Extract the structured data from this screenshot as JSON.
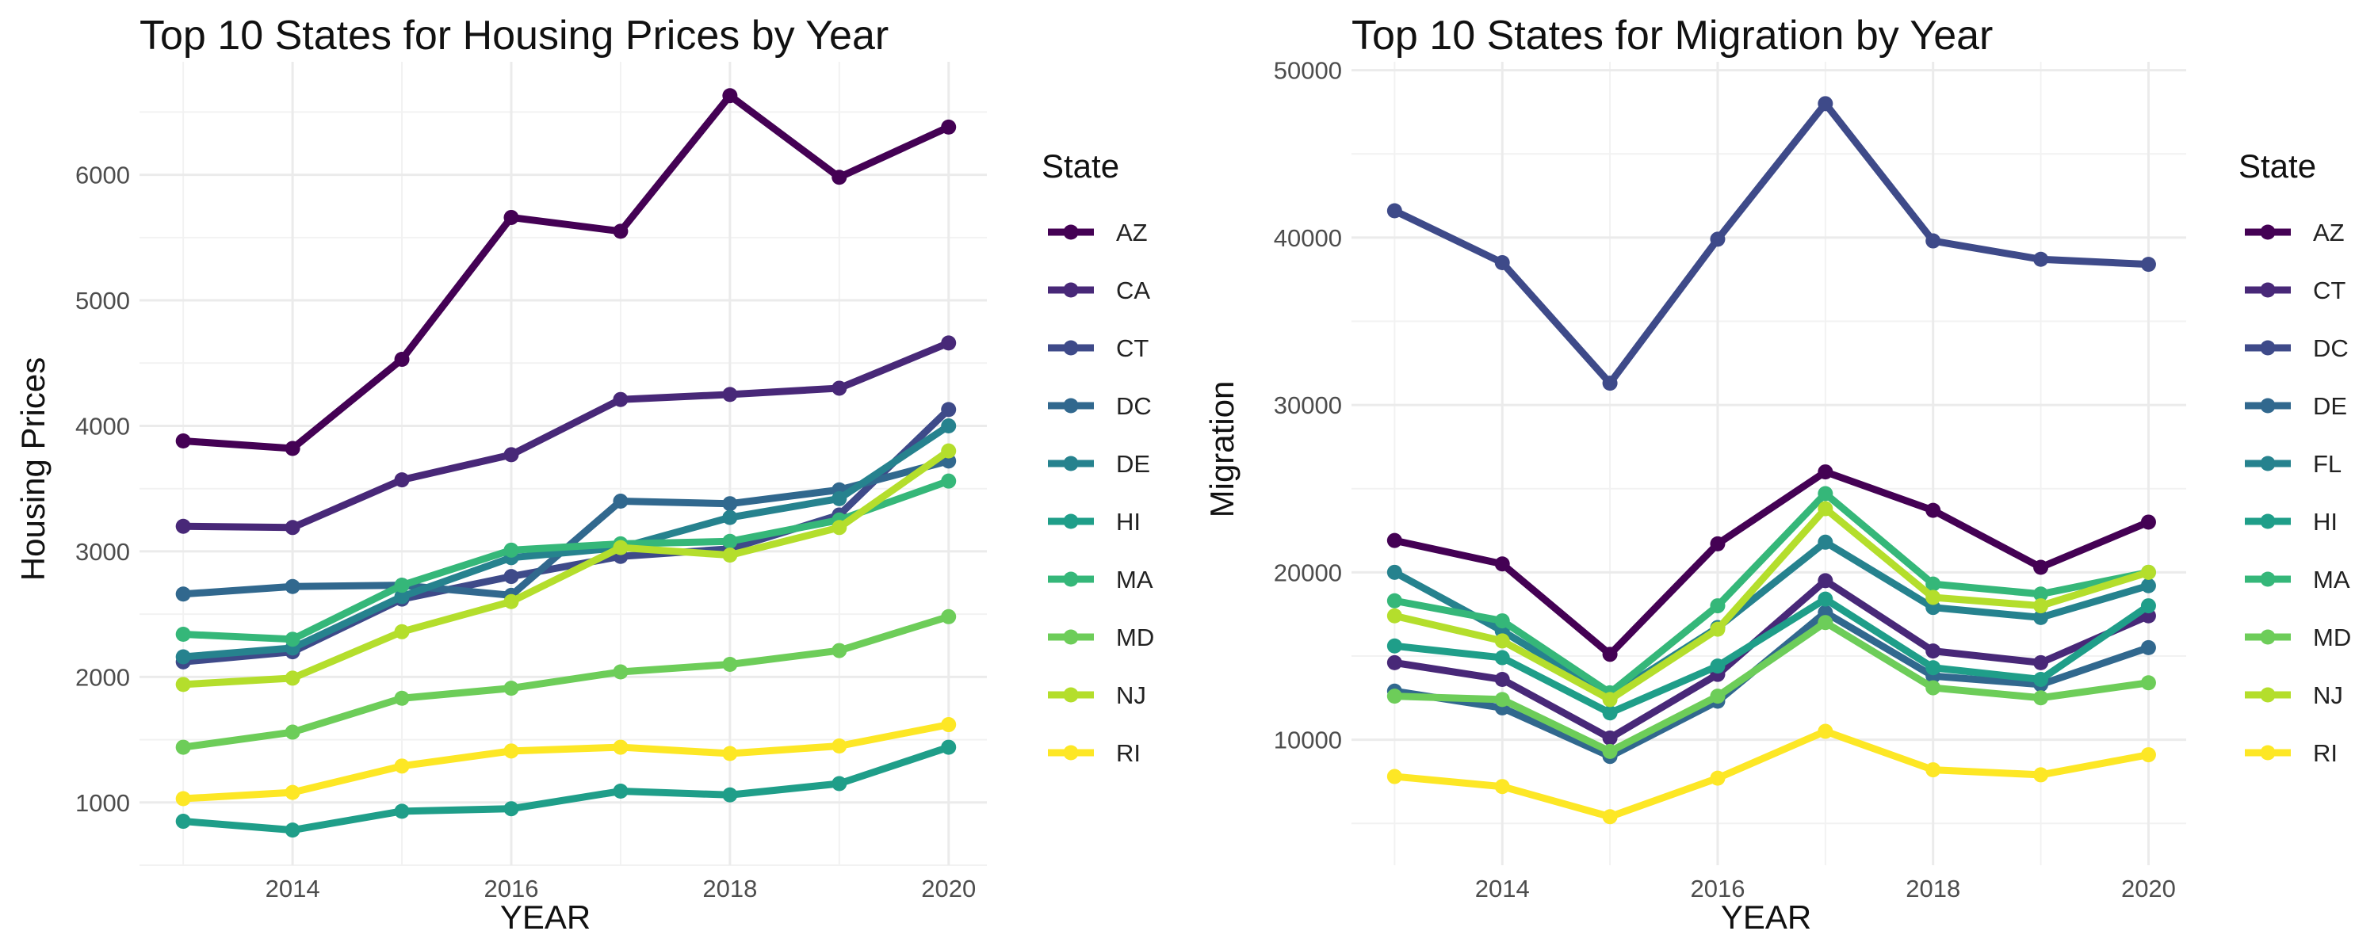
{
  "chart_data": [
    {
      "type": "line",
      "title": "Top 10 States for Housing Prices by Year",
      "xlabel": "YEAR",
      "ylabel": "Housing Prices",
      "x": [
        2013,
        2014,
        2015,
        2016,
        2017,
        2018,
        2019,
        2020
      ],
      "xticks": [
        "2014",
        "2016",
        "2018",
        "2020"
      ],
      "yticks": [
        "1000",
        "2000",
        "3000",
        "4000",
        "5000",
        "6000"
      ],
      "xlim": [
        2012.6,
        2020.35
      ],
      "ylim": [
        500,
        6900
      ],
      "grid": true,
      "legend_title": "State",
      "legend_position": "right",
      "series": [
        {
          "name": "AZ",
          "color": "#440154",
          "values": [
            3880,
            3820,
            4530,
            5660,
            5550,
            6630,
            5980,
            6380
          ]
        },
        {
          "name": "CA",
          "color": "#482878",
          "values": [
            3200,
            3190,
            3570,
            3770,
            4210,
            4250,
            4300,
            4660
          ]
        },
        {
          "name": "CT",
          "color": "#3E4A89",
          "values": [
            2120,
            2200,
            2620,
            2800,
            2960,
            3020,
            3290,
            4130
          ]
        },
        {
          "name": "DC",
          "color": "#31688E",
          "values": [
            2660,
            2720,
            2730,
            2650,
            3400,
            3380,
            3490,
            3720
          ]
        },
        {
          "name": "DE",
          "color": "#26828E",
          "values": [
            2160,
            2230,
            2640,
            2950,
            3030,
            3270,
            3420,
            4000
          ]
        },
        {
          "name": "HI",
          "color": "#1F9E89",
          "values": [
            850,
            780,
            930,
            950,
            1090,
            1060,
            1150,
            1440
          ]
        },
        {
          "name": "MA",
          "color": "#35B779",
          "values": [
            2340,
            2300,
            2730,
            3010,
            3060,
            3080,
            3250,
            3560
          ]
        },
        {
          "name": "MD",
          "color": "#6DCD59",
          "values": [
            1440,
            1560,
            1830,
            1910,
            2040,
            2100,
            2210,
            2480
          ]
        },
        {
          "name": "NJ",
          "color": "#B4DE2C",
          "values": [
            1940,
            1990,
            2360,
            2600,
            3030,
            2970,
            3190,
            3800
          ]
        },
        {
          "name": "RI",
          "color": "#FDE725",
          "values": [
            1030,
            1080,
            1290,
            1410,
            1440,
            1390,
            1450,
            1620
          ]
        }
      ]
    },
    {
      "type": "line",
      "title": "Top 10 States for Migration by Year",
      "xlabel": "YEAR",
      "ylabel": "Migration",
      "x": [
        2013,
        2014,
        2015,
        2016,
        2017,
        2018,
        2019,
        2020
      ],
      "xticks": [
        "2014",
        "2016",
        "2018",
        "2020"
      ],
      "yticks": [
        "10000",
        "20000",
        "30000",
        "40000",
        "50000"
      ],
      "xlim": [
        2012.6,
        2020.35
      ],
      "ylim": [
        2500,
        50500
      ],
      "grid": true,
      "legend_title": "State",
      "legend_position": "right",
      "series": [
        {
          "name": "AZ",
          "color": "#440154",
          "values": [
            21900,
            20500,
            15100,
            21700,
            26000,
            23700,
            20300,
            23000
          ]
        },
        {
          "name": "CT",
          "color": "#482878",
          "values": [
            14600,
            13600,
            10100,
            13900,
            19500,
            15300,
            14600,
            17400
          ]
        },
        {
          "name": "DC",
          "color": "#3E4A89",
          "values": [
            41600,
            38500,
            31300,
            39900,
            48000,
            39800,
            38700,
            38400
          ]
        },
        {
          "name": "DE",
          "color": "#31688E",
          "values": [
            12900,
            11900,
            9000,
            12300,
            17600,
            13800,
            13300,
            15500
          ]
        },
        {
          "name": "FL",
          "color": "#26828E",
          "values": [
            20000,
            16500,
            12600,
            16700,
            21800,
            17900,
            17300,
            19200
          ]
        },
        {
          "name": "HI",
          "color": "#1F9E89",
          "values": [
            15600,
            14900,
            11600,
            14400,
            18400,
            14300,
            13600,
            18000
          ]
        },
        {
          "name": "MA",
          "color": "#35B779",
          "values": [
            18300,
            17100,
            12800,
            18000,
            24700,
            19300,
            18700,
            20000
          ]
        },
        {
          "name": "MD",
          "color": "#6DCD59",
          "values": [
            12600,
            12400,
            9300,
            12600,
            17000,
            13100,
            12500,
            13400
          ]
        },
        {
          "name": "NJ",
          "color": "#B4DE2C",
          "values": [
            17400,
            15900,
            12400,
            16600,
            23800,
            18500,
            18000,
            20000
          ]
        },
        {
          "name": "RI",
          "color": "#FDE725",
          "values": [
            7800,
            7200,
            5400,
            7700,
            10500,
            8200,
            7900,
            9100
          ]
        }
      ]
    }
  ]
}
